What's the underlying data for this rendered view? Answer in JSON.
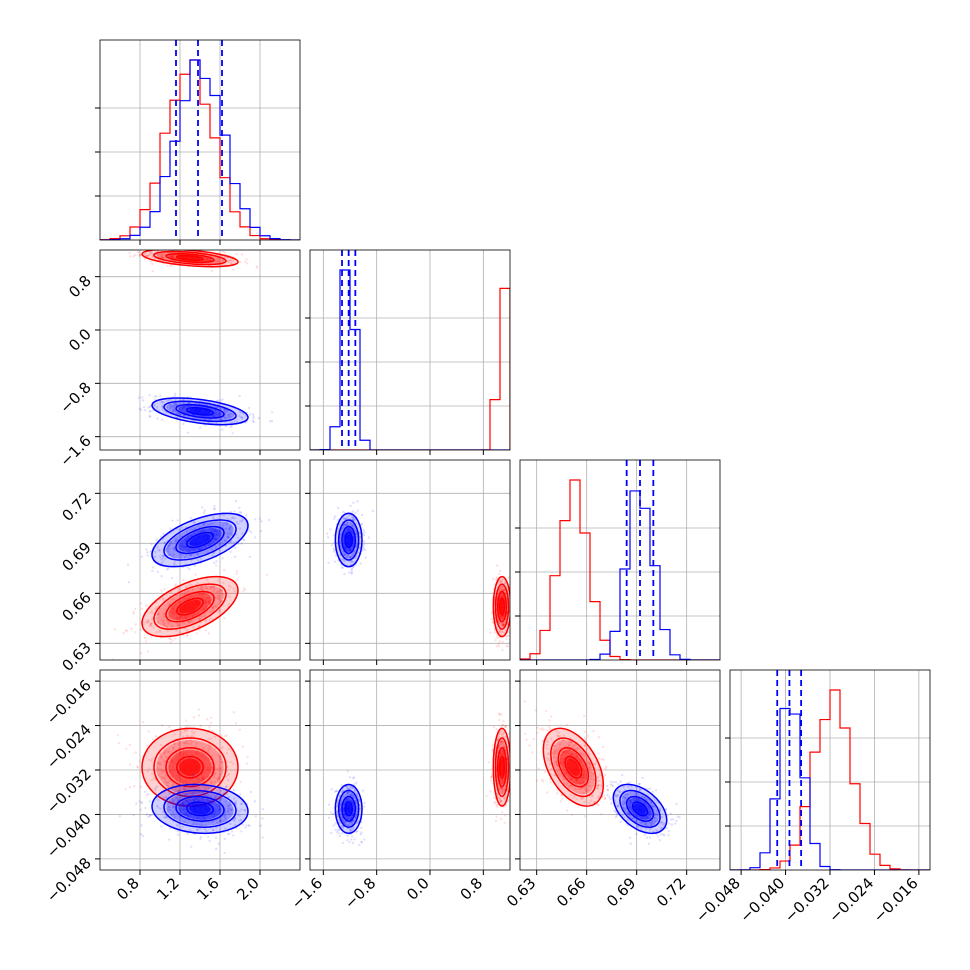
{
  "colors": {
    "red": "#ff0000",
    "blue": "#0000ff",
    "grid": "#b0b0b0",
    "axis": "#000000"
  },
  "chart_data": [
    {
      "type": "corner",
      "description_of_layout": "lower-triangular grid",
      "n_params": 4,
      "params": [
        {
          "ticks": [
            "0.8",
            "1.2",
            "1.6",
            "2.0"
          ],
          "tick_values": [
            0.8,
            1.2,
            1.6,
            2.0
          ],
          "range": [
            0.4,
            2.4
          ]
        },
        {
          "ticks": [
            "−1.6",
            "−0.8",
            "0.0",
            "0.8"
          ],
          "tick_values": [
            -1.6,
            -0.8,
            0.0,
            0.8
          ],
          "range": [
            -1.8,
            1.2
          ]
        },
        {
          "ticks": [
            "0.63",
            "0.66",
            "0.69",
            "0.72"
          ],
          "tick_values": [
            0.63,
            0.66,
            0.69,
            0.72
          ],
          "range": [
            0.62,
            0.74
          ]
        },
        {
          "ticks": [
            "−0.048",
            "−0.040",
            "−0.032",
            "−0.024",
            "−0.016"
          ],
          "tick_values": [
            -0.048,
            -0.04,
            -0.032,
            -0.024,
            -0.016
          ],
          "range": [
            -0.05,
            -0.014
          ]
        }
      ],
      "series": [
        {
          "color_key": "red",
          "means": [
            1.3,
            1.08,
            0.652,
            -0.0315
          ],
          "sds": [
            0.24,
            0.065,
            0.009,
            0.0035
          ],
          "corr": [
            [
              0,
              1,
              -0.45
            ],
            [
              0,
              2,
              0.55
            ],
            [
              0,
              3,
              0.0
            ],
            [
              2,
              3,
              -0.45
            ]
          ]
        },
        {
          "color_key": "blue",
          "means": [
            1.4,
            -1.22,
            0.692,
            -0.039
          ],
          "sds": [
            0.24,
            0.1,
            0.008,
            0.0022
          ],
          "corr": [
            [
              0,
              1,
              -0.45
            ],
            [
              0,
              2,
              0.55
            ],
            [
              0,
              3,
              -0.1
            ],
            [
              2,
              3,
              -0.45
            ]
          ]
        }
      ],
      "quantile_lines": {
        "color_key": "blue",
        "values": [
          [
            1.16,
            1.38,
            1.62
          ],
          [
            -1.32,
            -1.22,
            -1.12
          ],
          [
            0.684,
            0.692,
            0.7
          ],
          [
            -0.0415,
            -0.0393,
            -0.0372
          ]
        ]
      },
      "grid": true
    }
  ]
}
